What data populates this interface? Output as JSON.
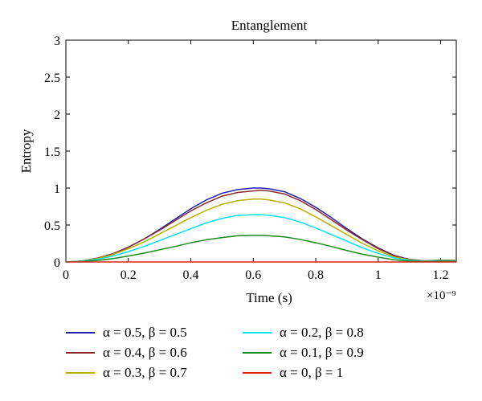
{
  "chart_data": {
    "type": "line",
    "title": "Entanglement",
    "xlabel": "Time (s)",
    "ylabel": "Entropy",
    "x_exponent_label": "×10⁻⁹",
    "xlim": [
      0,
      1.25
    ],
    "ylim": [
      0,
      3
    ],
    "x_ticks": [
      0,
      0.2,
      0.4,
      0.6,
      0.8,
      1,
      1.2
    ],
    "x_tick_labels": [
      "0",
      "0.2",
      "0.4",
      "0.6",
      "0.8",
      "1",
      "1.2"
    ],
    "y_ticks": [
      0,
      0.5,
      1,
      1.5,
      2,
      2.5,
      3
    ],
    "y_tick_labels": [
      "0",
      "0.5",
      "1",
      "1.5",
      "2",
      "2.5",
      "3"
    ],
    "grid": false,
    "legend_position": "bottom",
    "x": [
      0,
      0.05,
      0.1,
      0.15,
      0.2,
      0.25,
      0.3,
      0.35,
      0.4,
      0.45,
      0.5,
      0.55,
      0.6,
      0.625,
      0.65,
      0.7,
      0.75,
      0.8,
      0.85,
      0.9,
      0.95,
      1.0,
      1.05,
      1.1,
      1.15,
      1.2,
      1.25
    ],
    "series": [
      {
        "name": "α = 0.5, β = 0.5",
        "color": "#1f1fb4",
        "values": [
          0,
          0.012,
          0.05,
          0.11,
          0.2,
          0.31,
          0.44,
          0.58,
          0.72,
          0.84,
          0.93,
          0.98,
          1.0,
          1.0,
          0.99,
          0.95,
          0.86,
          0.74,
          0.6,
          0.45,
          0.31,
          0.19,
          0.09,
          0.035,
          0.015,
          0.025,
          0.02
        ]
      },
      {
        "name": "α = 0.4, β = 0.6",
        "color": "#8b2a2a",
        "values": [
          0,
          0.012,
          0.05,
          0.11,
          0.2,
          0.31,
          0.43,
          0.56,
          0.69,
          0.8,
          0.89,
          0.94,
          0.96,
          0.97,
          0.96,
          0.92,
          0.83,
          0.71,
          0.57,
          0.43,
          0.3,
          0.18,
          0.085,
          0.033,
          0.014,
          0.024,
          0.02
        ]
      },
      {
        "name": "α = 0.3, β = 0.7",
        "color": "#b8b000",
        "values": [
          0,
          0.011,
          0.045,
          0.1,
          0.18,
          0.27,
          0.38,
          0.49,
          0.6,
          0.7,
          0.78,
          0.83,
          0.85,
          0.85,
          0.84,
          0.8,
          0.72,
          0.61,
          0.49,
          0.37,
          0.25,
          0.15,
          0.07,
          0.028,
          0.012,
          0.02,
          0.018
        ]
      },
      {
        "name": "α = 0.2, β = 0.8",
        "color": "#00e5ee",
        "values": [
          0,
          0.009,
          0.035,
          0.08,
          0.14,
          0.21,
          0.29,
          0.37,
          0.45,
          0.53,
          0.59,
          0.63,
          0.64,
          0.64,
          0.63,
          0.6,
          0.54,
          0.46,
          0.37,
          0.28,
          0.19,
          0.115,
          0.055,
          0.022,
          0.009,
          0.016,
          0.014
        ]
      },
      {
        "name": "α = 0.1, β = 0.9",
        "color": "#1a8a1a",
        "values": [
          0,
          0.005,
          0.02,
          0.045,
          0.08,
          0.12,
          0.165,
          0.21,
          0.26,
          0.3,
          0.33,
          0.355,
          0.36,
          0.36,
          0.355,
          0.34,
          0.305,
          0.26,
          0.21,
          0.155,
          0.105,
          0.065,
          0.03,
          0.012,
          0.005,
          0.009,
          0.008
        ]
      },
      {
        "name": "α = 0, β = 1",
        "color": "#e02020",
        "values": [
          0,
          0,
          0,
          0,
          0,
          0,
          0,
          0,
          0,
          0,
          0,
          0,
          0,
          0,
          0,
          0,
          0,
          0,
          0,
          0,
          0,
          0,
          0,
          0,
          0,
          0,
          0
        ]
      }
    ]
  }
}
